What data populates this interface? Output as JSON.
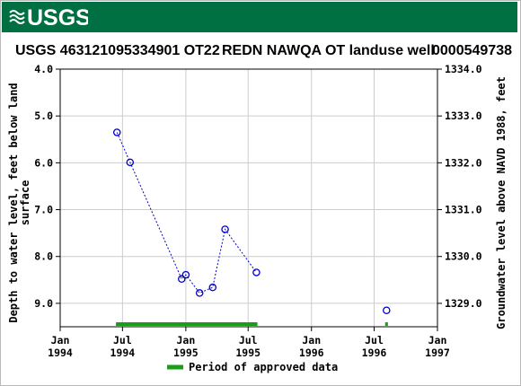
{
  "header": {
    "logo_text": "USGS",
    "brand_color": "#006f41",
    "logo_icon": "usgs-wave-logo-icon"
  },
  "title": {
    "site_id": "USGS 463121095334901 OT22",
    "site_name": "REDN NAWQA OT landuse well",
    "number": "0000549738"
  },
  "chart_data": {
    "type": "scatter",
    "title": "USGS 463121095334901 OT22      REDN NAWQA OT landuse well     0000549738",
    "ylabel_left": "Depth to water level, feet below land surface",
    "ylabel_left_lines": [
      "Depth to water level, feet below land",
      "surface"
    ],
    "ylabel_right": "Groundwater level above NAVD 1988, feet",
    "left_ylim": [
      4.0,
      9.5
    ],
    "left_inverted": true,
    "right_ylim": [
      1334.0,
      1328.5
    ],
    "left_ticks": [
      "4.0",
      "5.0",
      "6.0",
      "7.0",
      "8.0",
      "9.0"
    ],
    "left_tick_values": [
      4,
      5,
      6,
      7,
      8,
      9
    ],
    "right_ticks": [
      "1334.0",
      "1333.0",
      "1332.0",
      "1331.0",
      "1330.0",
      "1329.0"
    ],
    "right_tick_values": [
      1334,
      1333,
      1332,
      1331,
      1330,
      1329
    ],
    "xlim": [
      "1994-01-01",
      "1997-01-01"
    ],
    "x_ticks": [
      {
        "date": "1994-01-01",
        "line1": "Jan",
        "line2": "1994"
      },
      {
        "date": "1994-07-01",
        "line1": "Jul",
        "line2": "1994"
      },
      {
        "date": "1995-01-01",
        "line1": "Jan",
        "line2": "1995"
      },
      {
        "date": "1995-07-01",
        "line1": "Jul",
        "line2": "1995"
      },
      {
        "date": "1996-01-01",
        "line1": "Jan",
        "line2": "1996"
      },
      {
        "date": "1996-07-01",
        "line1": "Jul",
        "line2": "1996"
      },
      {
        "date": "1997-01-01",
        "line1": "Jan",
        "line2": "1997"
      }
    ],
    "grid": true,
    "series": [
      {
        "name": "",
        "color": "#0000cc",
        "connected": true,
        "points": [
          {
            "date": "1994-06-15",
            "value": 5.35
          },
          {
            "date": "1994-07-23",
            "value": 5.99
          },
          {
            "date": "1994-12-20",
            "value": 8.48
          },
          {
            "date": "1995-01-01",
            "value": 8.39
          },
          {
            "date": "1995-02-10",
            "value": 8.78
          },
          {
            "date": "1995-03-20",
            "value": 8.66
          },
          {
            "date": "1995-04-25",
            "value": 7.42
          },
          {
            "date": "1995-07-25",
            "value": 8.34
          }
        ]
      },
      {
        "name": "",
        "color": "#0000cc",
        "connected": false,
        "points": [
          {
            "date": "1996-08-06",
            "value": 9.15
          }
        ]
      }
    ],
    "approved_periods": [
      {
        "start": "1994-06-12",
        "end": "1995-07-28"
      },
      {
        "start": "1996-08-02",
        "end": "1996-08-10"
      }
    ],
    "approved_color": "#1a9e1a",
    "legend": {
      "label": "Period of approved data",
      "placement": "bottom-center"
    }
  }
}
